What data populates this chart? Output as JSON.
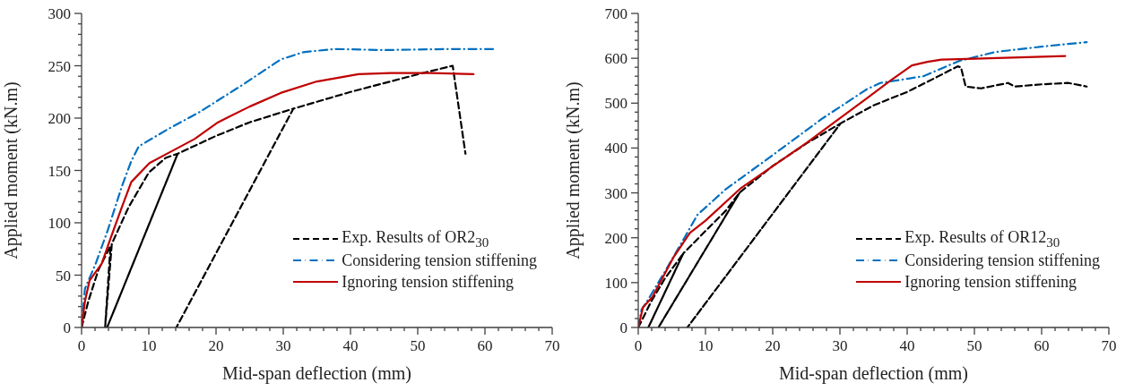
{
  "chart_data": [
    {
      "type": "line",
      "xlabel": "Mid-span deflection (mm)",
      "ylabel": "Applied moment (kN.m)",
      "legend": "bottom right",
      "marker": "none",
      "xlim": [
        0,
        70
      ],
      "ylim": [
        0,
        300
      ],
      "xticks": [
        0,
        {
          "value": 2,
          "label": null
        },
        {
          "value": 4,
          "label": null
        },
        {
          "value": 6,
          "label": null
        },
        {
          "value": 8,
          "label": null
        },
        10,
        {
          "value": 12,
          "label": null
        },
        {
          "value": 14,
          "label": null
        },
        {
          "value": 16,
          "label": null
        },
        {
          "value": 18,
          "label": null
        },
        20,
        {
          "value": 22,
          "label": null
        },
        {
          "value": 24,
          "label": null
        },
        {
          "value": 26,
          "label": null
        },
        {
          "value": 28,
          "label": null
        },
        30,
        {
          "value": 32,
          "label": null
        },
        {
          "value": 34,
          "label": null
        },
        {
          "value": 36,
          "label": null
        },
        {
          "value": 38,
          "label": null
        },
        40,
        {
          "value": 42,
          "label": null
        },
        {
          "value": 44,
          "label": null
        },
        {
          "value": 46,
          "label": null
        },
        {
          "value": 48,
          "label": null
        },
        50,
        {
          "value": 52,
          "label": null
        },
        {
          "value": 54,
          "label": null
        },
        {
          "value": 56,
          "label": null
        },
        {
          "value": 58,
          "label": null
        },
        60,
        {
          "value": 62,
          "label": null
        },
        {
          "value": 64,
          "label": null
        },
        {
          "value": 66,
          "label": null
        },
        {
          "value": 68,
          "label": null
        },
        70
      ],
      "yticks": [
        0,
        {
          "value": 10,
          "label": null
        },
        {
          "value": 20,
          "label": null
        },
        {
          "value": 30,
          "label": null
        },
        {
          "value": 40,
          "label": null
        },
        50,
        {
          "value": 60,
          "label": null
        },
        {
          "value": 70,
          "label": null
        },
        {
          "value": 80,
          "label": null
        },
        {
          "value": 90,
          "label": null
        },
        100,
        {
          "value": 110,
          "label": null
        },
        {
          "value": 120,
          "label": null
        },
        {
          "value": 130,
          "label": null
        },
        {
          "value": 140,
          "label": null
        },
        150,
        {
          "value": 160,
          "label": null
        },
        {
          "value": 170,
          "label": null
        },
        {
          "value": 180,
          "label": null
        },
        {
          "value": 190,
          "label": null
        },
        200,
        {
          "value": 210,
          "label": null
        },
        {
          "value": 220,
          "label": null
        },
        {
          "value": 230,
          "label": null
        },
        {
          "value": 240,
          "label": null
        },
        250,
        {
          "value": 260,
          "label": null
        },
        {
          "value": 270,
          "label": null
        },
        {
          "value": 280,
          "label": null
        },
        {
          "value": 290,
          "label": null
        },
        300
      ],
      "series": [
        {
          "name": "Exp. Results of OR2$_{30}$",
          "color": "#000000",
          "line_style": "dashed",
          "x": [
            0,
            1,
            2.5,
            4.3,
            3.5,
            4.5,
            7,
            10,
            12.5,
            14.3,
            3.8,
            14.3,
            20,
            25,
            31.5,
            14.1,
            31.5,
            40,
            50.1,
            55.2,
            57.1
          ],
          "values": [
            0,
            25,
            55,
            78,
            0,
            80,
            115,
            148,
            162,
            166,
            0,
            166,
            183,
            196,
            209,
            0,
            209,
            225,
            242,
            250,
            166
          ]
        },
        {
          "name": "Considering tension stiffening",
          "color": "#0070c0",
          "line_style": "dashdot",
          "x": [
            0,
            0.5,
            2.1,
            3.9,
            6,
            7.4,
            8.5,
            13,
            17.6,
            24,
            29.6,
            33,
            37.6,
            45,
            55,
            61.6
          ],
          "values": [
            0,
            37,
            61,
            93,
            135,
            159,
            173,
            190,
            206,
            232,
            256,
            263,
            266,
            265,
            266,
            266
          ]
        },
        {
          "name": "Ignoring tension stiffening",
          "color": "#c00000",
          "line_style": "solid",
          "x": [
            0,
            0.5,
            1.2,
            3,
            4.3,
            6,
            7.4,
            10.1,
            13,
            16.8,
            20.3,
            25,
            29.6,
            35,
            41.2,
            46,
            52,
            58.3
          ],
          "values": [
            0,
            25,
            45,
            61,
            85,
            115,
            139,
            157,
            167,
            180,
            196,
            211,
            224,
            235,
            242,
            243,
            243,
            242
          ]
        }
      ]
    },
    {
      "type": "line",
      "xlabel": "Mid-span deflection (mm)",
      "ylabel": "Applied moment (kN.m)",
      "legend": "bottom right",
      "marker": "none",
      "xlim": [
        0,
        70
      ],
      "ylim": [
        0,
        700
      ],
      "xticks": [
        0,
        {
          "value": 2,
          "label": null
        },
        {
          "value": 4,
          "label": null
        },
        {
          "value": 6,
          "label": null
        },
        {
          "value": 8,
          "label": null
        },
        10,
        {
          "value": 12,
          "label": null
        },
        {
          "value": 14,
          "label": null
        },
        {
          "value": 16,
          "label": null
        },
        {
          "value": 18,
          "label": null
        },
        20,
        {
          "value": 22,
          "label": null
        },
        {
          "value": 24,
          "label": null
        },
        {
          "value": 26,
          "label": null
        },
        {
          "value": 28,
          "label": null
        },
        30,
        {
          "value": 32,
          "label": null
        },
        {
          "value": 34,
          "label": null
        },
        {
          "value": 36,
          "label": null
        },
        {
          "value": 38,
          "label": null
        },
        40,
        {
          "value": 42,
          "label": null
        },
        {
          "value": 44,
          "label": null
        },
        {
          "value": 46,
          "label": null
        },
        {
          "value": 48,
          "label": null
        },
        50,
        {
          "value": 52,
          "label": null
        },
        {
          "value": 54,
          "label": null
        },
        {
          "value": 56,
          "label": null
        },
        {
          "value": 58,
          "label": null
        },
        60,
        {
          "value": 62,
          "label": null
        },
        {
          "value": 64,
          "label": null
        },
        {
          "value": 66,
          "label": null
        },
        {
          "value": 68,
          "label": null
        },
        70
      ],
      "yticks": [
        0,
        {
          "value": 20,
          "label": null
        },
        {
          "value": 40,
          "label": null
        },
        {
          "value": 60,
          "label": null
        },
        {
          "value": 80,
          "label": null
        },
        100,
        {
          "value": 120,
          "label": null
        },
        {
          "value": 140,
          "label": null
        },
        {
          "value": 160,
          "label": null
        },
        {
          "value": 180,
          "label": null
        },
        200,
        {
          "value": 220,
          "label": null
        },
        {
          "value": 240,
          "label": null
        },
        {
          "value": 260,
          "label": null
        },
        {
          "value": 280,
          "label": null
        },
        300,
        {
          "value": 320,
          "label": null
        },
        {
          "value": 340,
          "label": null
        },
        {
          "value": 360,
          "label": null
        },
        {
          "value": 380,
          "label": null
        },
        400,
        {
          "value": 420,
          "label": null
        },
        {
          "value": 440,
          "label": null
        },
        {
          "value": 460,
          "label": null
        },
        {
          "value": 480,
          "label": null
        },
        500,
        {
          "value": 520,
          "label": null
        },
        {
          "value": 540,
          "label": null
        },
        {
          "value": 560,
          "label": null
        },
        {
          "value": 580,
          "label": null
        },
        600,
        {
          "value": 620,
          "label": null
        },
        {
          "value": 640,
          "label": null
        },
        {
          "value": 660,
          "label": null
        },
        {
          "value": 680,
          "label": null
        },
        700
      ],
      "series": [
        {
          "name": "Exp. Results of OR12$_{30}$",
          "color": "#000000",
          "line_style": "dashed",
          "x": [
            0,
            2,
            4,
            6.7,
            1.5,
            6.7,
            10,
            13,
            15.1,
            3,
            15.1,
            20,
            25,
            30.1,
            7.3,
            30.1,
            35,
            40,
            44,
            47.5,
            48,
            48.7,
            51,
            55,
            56,
            60,
            64,
            66.7
          ],
          "values": [
            0,
            60,
            110,
            165,
            0,
            165,
            215,
            260,
            301,
            0,
            301,
            360,
            410,
            455,
            0,
            455,
            495,
            525,
            555,
            582,
            580,
            537,
            533,
            545,
            537,
            542,
            545,
            537
          ]
        },
        {
          "name": "Considering tension stiffening",
          "color": "#0070c0",
          "line_style": "dashdot",
          "x": [
            0,
            0.5,
            1.3,
            4.1,
            6.8,
            8.8,
            13,
            18.8,
            27.3,
            34,
            36,
            42.4,
            47.7,
            53.1,
            60,
            66.7
          ],
          "values": [
            0,
            40,
            58,
            128,
            198,
            251,
            308,
            371,
            465,
            531,
            545,
            560,
            594,
            614,
            626,
            636
          ]
        },
        {
          "name": "Ignoring tension stiffening",
          "color": "#c00000",
          "line_style": "solid",
          "x": [
            0,
            0.7,
            2.1,
            5.3,
            7.7,
            10,
            15.3,
            25,
            34,
            37.5,
            40.7,
            43,
            45.1,
            50,
            63.5
          ],
          "values": [
            0,
            45,
            68,
            158,
            211,
            238,
            311,
            411,
            511,
            550,
            584,
            592,
            597,
            599,
            605
          ]
        }
      ]
    }
  ]
}
